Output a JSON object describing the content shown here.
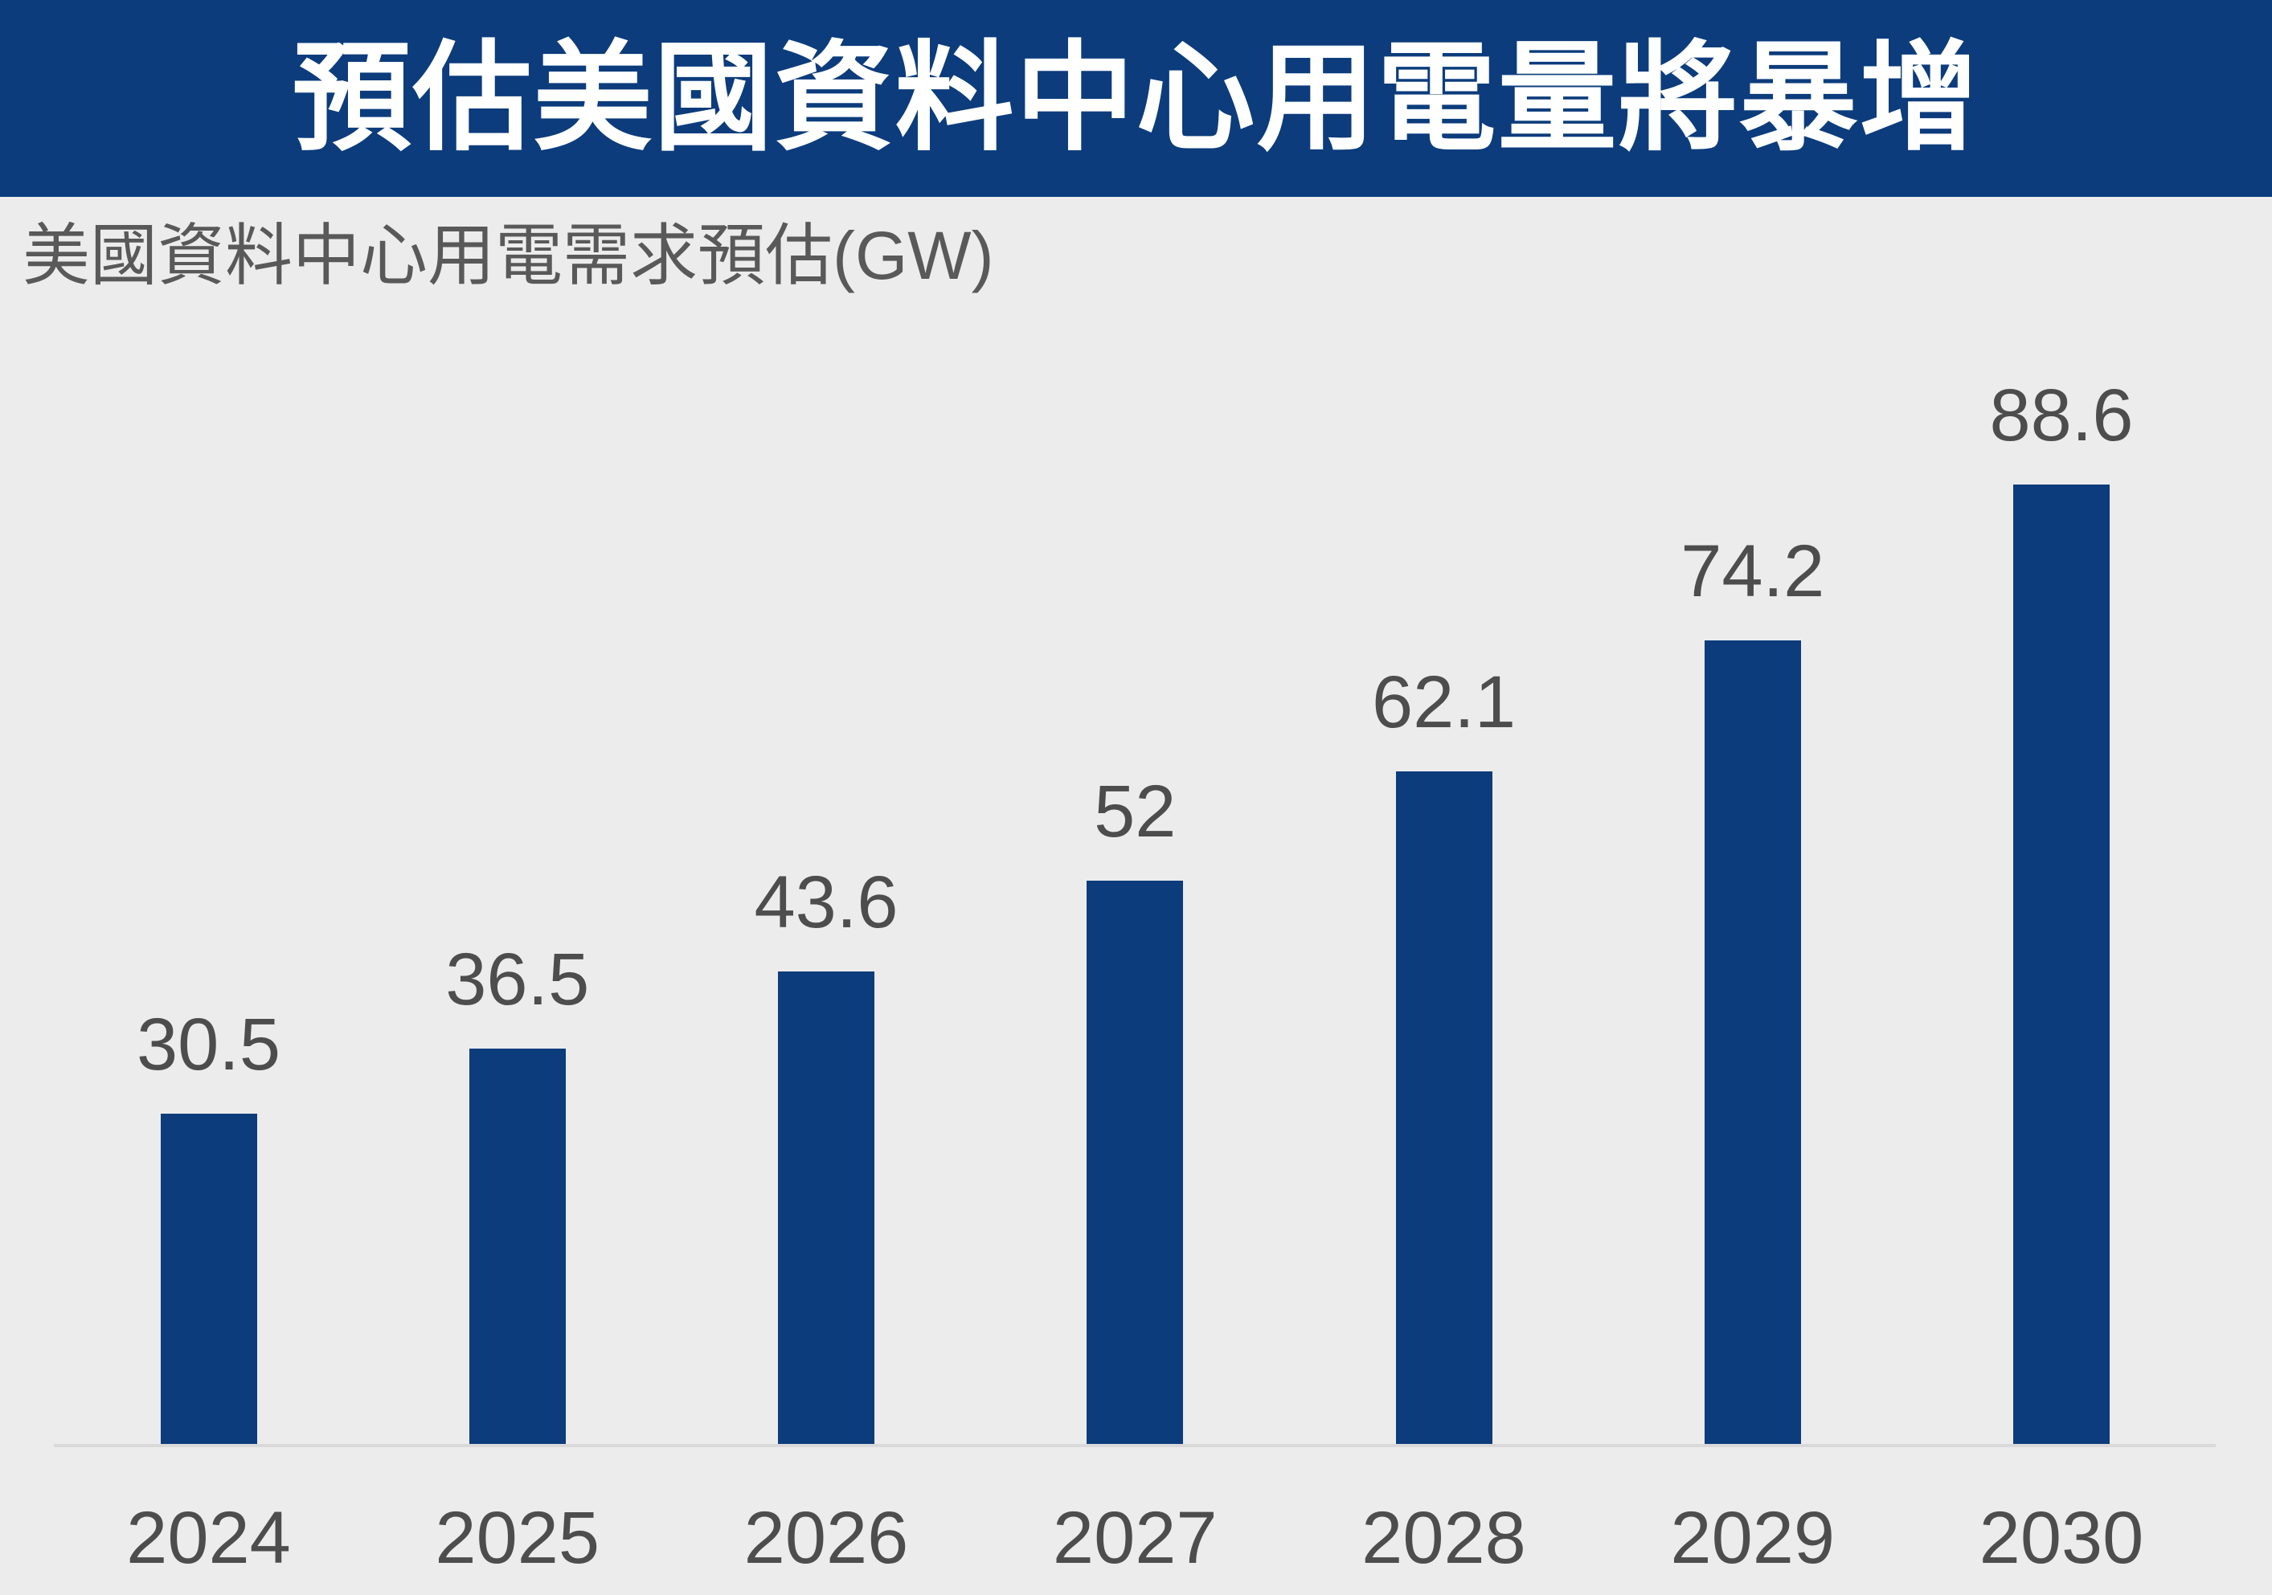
{
  "header": {
    "title": "預估美國資料中心用電量將暴增"
  },
  "subtitle": "美國資料中心用電需求預估(GW)",
  "colors": {
    "header_background": "#0c3c7c",
    "bar": "#0c3c7c",
    "page_background": "#ececec",
    "axis_line": "#d9d9d9",
    "label_text": "#4d4d4d",
    "subtitle_text": "#595959",
    "title_text": "#ffffff"
  },
  "chart_data": {
    "type": "bar",
    "title": "預估美國資料中心用電量將暴增",
    "subtitle": "美國資料中心用電需求預估(GW)",
    "unit": "GW",
    "categories": [
      "2024",
      "2025",
      "2026",
      "2027",
      "2028",
      "2029",
      "2030"
    ],
    "values": [
      30.5,
      36.5,
      43.6,
      52,
      62.1,
      74.2,
      88.6
    ],
    "value_labels": [
      "30.5",
      "36.5",
      "43.6",
      "52",
      "62.1",
      "74.2",
      "88.6"
    ],
    "xlabel": "",
    "ylabel": "GW",
    "ylim": [
      0,
      95
    ],
    "grid": false,
    "legend": "none",
    "y_axis_visible": false,
    "data_labels_position": "above-bars"
  }
}
